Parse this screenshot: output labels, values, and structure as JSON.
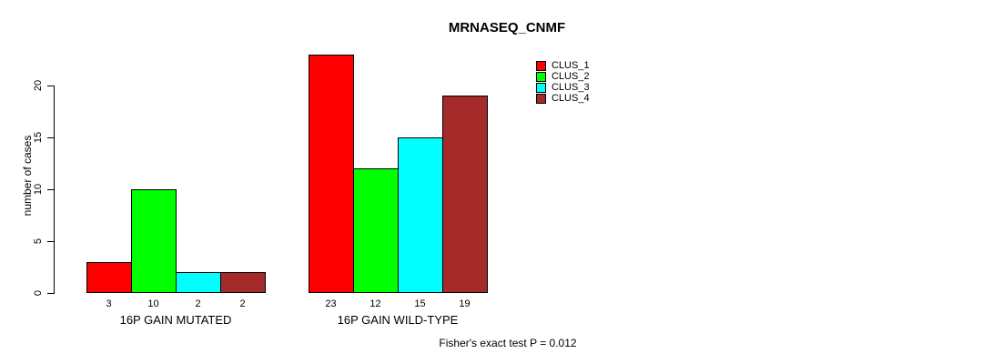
{
  "chart_data": {
    "type": "bar",
    "title": "MRNASEQ_CNMF",
    "ylabel": "number of cases",
    "xlabel": "",
    "yticks": [
      0,
      5,
      10,
      15,
      20
    ],
    "ylim": [
      0,
      23
    ],
    "grid": false,
    "legend_position": "top-right",
    "legend": [
      {
        "label": "CLUS_1",
        "color": "#ff0000"
      },
      {
        "label": "CLUS_2",
        "color": "#00ff00"
      },
      {
        "label": "CLUS_3",
        "color": "#00ffff"
      },
      {
        "label": "CLUS_4",
        "color": "#a52a2a"
      }
    ],
    "groups": [
      {
        "label": "16P GAIN MUTATED",
        "values": [
          3,
          10,
          2,
          2
        ]
      },
      {
        "label": "16P GAIN WILD-TYPE",
        "values": [
          23,
          12,
          15,
          19
        ]
      }
    ],
    "annotation": "Fisher's exact test P = 0.012"
  }
}
